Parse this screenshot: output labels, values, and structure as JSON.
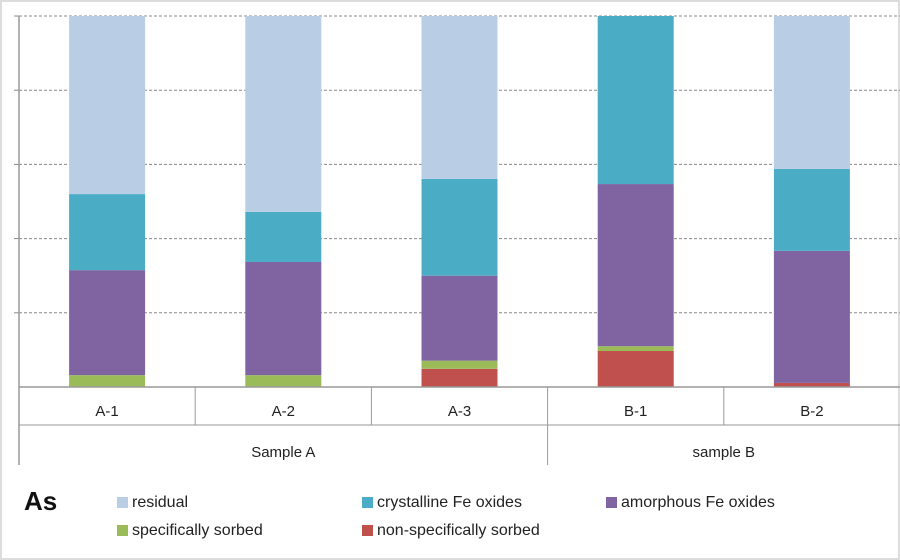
{
  "chart_data": {
    "type": "bar",
    "stacked": true,
    "title": "As",
    "xlabel": "",
    "ylabel": "",
    "ylim": [
      0,
      100
    ],
    "y_ticks_labeled": false,
    "grid": "dashed horizontal",
    "categories": [
      "A-1",
      "A-2",
      "A-3",
      "B-1",
      "B-2"
    ],
    "groups": [
      {
        "label": "Sample A",
        "members": [
          "A-1",
          "A-2",
          "A-3"
        ]
      },
      {
        "label": "sample B",
        "members": [
          "B-1",
          "B-2"
        ]
      }
    ],
    "series": [
      {
        "name": "non-specifically sorbed",
        "color": "#c0504d",
        "values": [
          0,
          0,
          4.9,
          9.7,
          1.1
        ]
      },
      {
        "name": "specifically sorbed",
        "color": "#9bbb59",
        "values": [
          3.2,
          3.2,
          2.2,
          1.3,
          0
        ]
      },
      {
        "name": "amorphous Fe oxides",
        "color": "#8064a2",
        "values": [
          28.3,
          30.5,
          22.9,
          43.7,
          35.6
        ]
      },
      {
        "name": "crystalline Fe oxides",
        "color": "#4bacc6",
        "values": [
          20.5,
          13.5,
          26.1,
          45.3,
          22.1
        ]
      },
      {
        "name": "residual",
        "color": "#b9cde5",
        "values": [
          48.0,
          52.8,
          43.9,
          0,
          41.2
        ]
      }
    ],
    "legend": {
      "placement": "bottom",
      "order": [
        "residual",
        "crystalline Fe oxides",
        "amorphous Fe oxides",
        "specifically sorbed",
        "non-specifically sorbed"
      ]
    }
  }
}
